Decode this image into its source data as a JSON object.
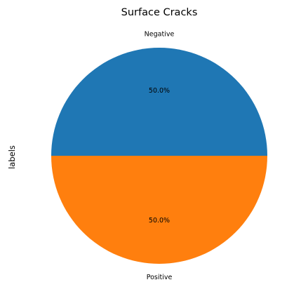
{
  "chart_data": {
    "type": "pie",
    "title": "Surface Cracks",
    "ylabel": "labels",
    "categories": [
      "Negative",
      "Positive"
    ],
    "values": [
      50.0,
      50.0
    ],
    "percent_labels": [
      "50.0%",
      "50.0%"
    ],
    "colors": [
      "#1f77b4",
      "#ff7f0e"
    ],
    "start_angle_deg": 0,
    "direction": "clockwise-from-right-via-top",
    "legend": "none"
  }
}
